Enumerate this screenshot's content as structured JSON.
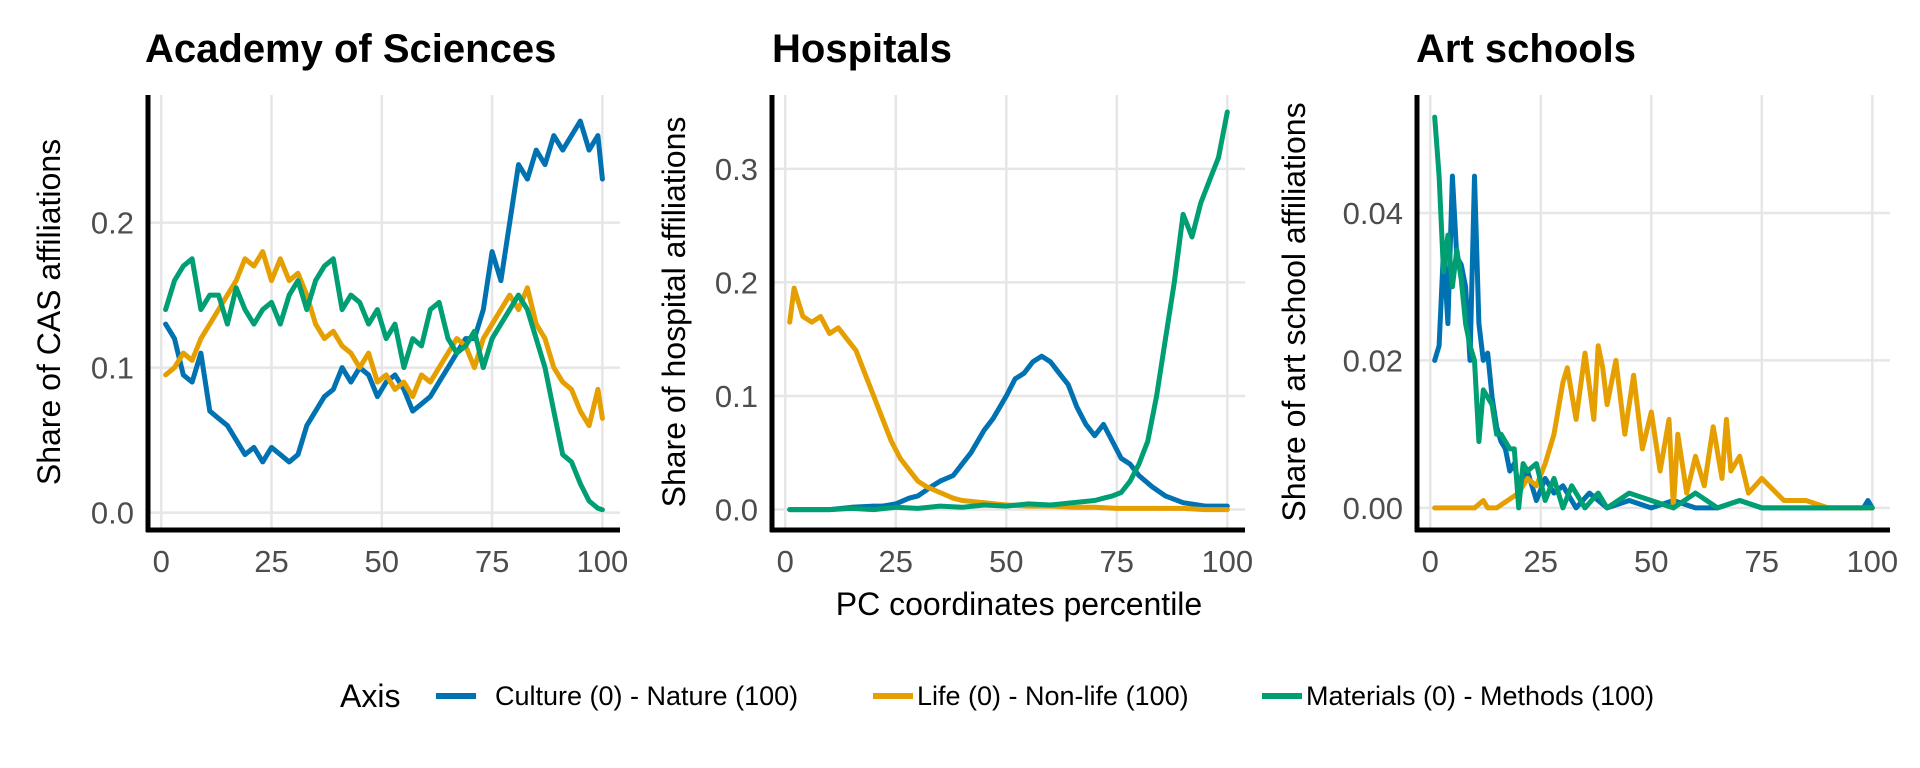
{
  "legend": {
    "title": "Axis",
    "items": [
      {
        "label": "Culture (0) - Nature (100)",
        "color": "#0072B2"
      },
      {
        "label": "Life (0) - Non-life (100)",
        "color": "#E69F00"
      },
      {
        "label": "Materials (0) - Methods (100)",
        "color": "#009E73"
      }
    ]
  },
  "shared_xlabel": "PC coordinates percentile",
  "chart_data": [
    {
      "type": "line",
      "title": "Academy of Sciences",
      "xlabel": "",
      "ylabel": "Share of CAS affiliations",
      "xlim": [
        -3,
        104
      ],
      "ylim": [
        -0.012,
        0.288
      ],
      "x_ticks": [
        0,
        25,
        50,
        75,
        100
      ],
      "x_tick_labels": [
        "0",
        "25",
        "50",
        "75",
        "100"
      ],
      "y_ticks": [
        0.0,
        0.1,
        0.2
      ],
      "y_tick_labels": [
        "0.0",
        "0.1",
        "0.2"
      ],
      "grid": true,
      "series": [
        {
          "name": "Culture (0) - Nature (100)",
          "color": "#0072B2",
          "x": [
            1,
            3,
            5,
            7,
            9,
            11,
            13,
            15,
            17,
            19,
            21,
            23,
            25,
            27,
            29,
            31,
            33,
            35,
            37,
            39,
            41,
            43,
            45,
            47,
            49,
            51,
            53,
            55,
            57,
            59,
            61,
            63,
            65,
            67,
            69,
            71,
            73,
            75,
            77,
            79,
            81,
            83,
            85,
            87,
            89,
            91,
            93,
            95,
            97,
            99,
            100
          ],
          "y": [
            0.13,
            0.12,
            0.095,
            0.09,
            0.11,
            0.07,
            0.065,
            0.06,
            0.05,
            0.04,
            0.045,
            0.035,
            0.045,
            0.04,
            0.035,
            0.04,
            0.06,
            0.07,
            0.08,
            0.085,
            0.1,
            0.09,
            0.1,
            0.095,
            0.08,
            0.09,
            0.095,
            0.085,
            0.07,
            0.075,
            0.08,
            0.09,
            0.1,
            0.11,
            0.12,
            0.12,
            0.14,
            0.18,
            0.16,
            0.2,
            0.24,
            0.23,
            0.25,
            0.24,
            0.26,
            0.25,
            0.26,
            0.27,
            0.25,
            0.26,
            0.23
          ]
        },
        {
          "name": "Life (0) - Non-life (100)",
          "color": "#E69F00",
          "x": [
            1,
            3,
            5,
            7,
            9,
            11,
            13,
            15,
            17,
            19,
            21,
            23,
            25,
            27,
            29,
            31,
            33,
            35,
            37,
            39,
            41,
            43,
            45,
            47,
            49,
            51,
            53,
            55,
            57,
            59,
            61,
            63,
            65,
            67,
            69,
            71,
            73,
            75,
            77,
            79,
            81,
            83,
            85,
            87,
            89,
            91,
            93,
            95,
            97,
            99,
            100
          ],
          "y": [
            0.095,
            0.1,
            0.11,
            0.105,
            0.12,
            0.13,
            0.14,
            0.15,
            0.16,
            0.175,
            0.17,
            0.18,
            0.16,
            0.175,
            0.16,
            0.165,
            0.15,
            0.13,
            0.12,
            0.125,
            0.115,
            0.11,
            0.1,
            0.11,
            0.09,
            0.095,
            0.085,
            0.09,
            0.08,
            0.095,
            0.09,
            0.1,
            0.11,
            0.12,
            0.115,
            0.1,
            0.12,
            0.13,
            0.14,
            0.15,
            0.14,
            0.155,
            0.13,
            0.12,
            0.1,
            0.09,
            0.085,
            0.07,
            0.06,
            0.085,
            0.065
          ]
        },
        {
          "name": "Materials (0) - Methods (100)",
          "color": "#009E73",
          "x": [
            1,
            3,
            5,
            7,
            9,
            11,
            13,
            15,
            17,
            19,
            21,
            23,
            25,
            27,
            29,
            31,
            33,
            35,
            37,
            39,
            41,
            43,
            45,
            47,
            49,
            51,
            53,
            55,
            57,
            59,
            61,
            63,
            65,
            67,
            69,
            71,
            73,
            75,
            77,
            79,
            81,
            83,
            85,
            87,
            89,
            91,
            93,
            95,
            97,
            99,
            100
          ],
          "y": [
            0.14,
            0.16,
            0.17,
            0.175,
            0.14,
            0.15,
            0.15,
            0.13,
            0.155,
            0.14,
            0.13,
            0.14,
            0.145,
            0.13,
            0.15,
            0.16,
            0.14,
            0.16,
            0.17,
            0.175,
            0.14,
            0.15,
            0.145,
            0.13,
            0.14,
            0.12,
            0.13,
            0.1,
            0.12,
            0.115,
            0.14,
            0.145,
            0.12,
            0.11,
            0.115,
            0.125,
            0.1,
            0.12,
            0.13,
            0.14,
            0.15,
            0.14,
            0.12,
            0.1,
            0.07,
            0.04,
            0.035,
            0.02,
            0.008,
            0.003,
            0.002
          ]
        }
      ]
    },
    {
      "type": "line",
      "title": "Hospitals",
      "xlabel": "PC coordinates percentile",
      "ylabel": "Share of hospital affiliations",
      "xlim": [
        -3,
        104
      ],
      "ylim": [
        -0.018,
        0.365
      ],
      "x_ticks": [
        0,
        25,
        50,
        75,
        100
      ],
      "x_tick_labels": [
        "0",
        "25",
        "50",
        "75",
        "100"
      ],
      "y_ticks": [
        0.0,
        0.1,
        0.2,
        0.3
      ],
      "y_tick_labels": [
        "0.0",
        "0.1",
        "0.2",
        "0.3"
      ],
      "grid": true,
      "series": [
        {
          "name": "Culture (0) - Nature (100)",
          "color": "#0072B2",
          "x": [
            1,
            5,
            10,
            15,
            20,
            22,
            25,
            28,
            30,
            33,
            35,
            38,
            40,
            42,
            45,
            47,
            50,
            52,
            54,
            56,
            58,
            60,
            62,
            64,
            66,
            68,
            70,
            72,
            74,
            76,
            78,
            80,
            83,
            86,
            90,
            95,
            100
          ],
          "y": [
            0.0,
            0.0,
            0.0,
            0.002,
            0.003,
            0.003,
            0.005,
            0.01,
            0.012,
            0.02,
            0.025,
            0.03,
            0.04,
            0.05,
            0.07,
            0.08,
            0.1,
            0.115,
            0.12,
            0.13,
            0.135,
            0.13,
            0.12,
            0.11,
            0.09,
            0.075,
            0.065,
            0.075,
            0.06,
            0.045,
            0.04,
            0.03,
            0.02,
            0.012,
            0.006,
            0.003,
            0.003
          ]
        },
        {
          "name": "Life (0) - Non-life (100)",
          "color": "#E69F00",
          "x": [
            1,
            2,
            4,
            6,
            8,
            10,
            12,
            14,
            16,
            18,
            20,
            22,
            24,
            26,
            28,
            30,
            32,
            35,
            38,
            40,
            45,
            50,
            55,
            60,
            65,
            70,
            75,
            80,
            85,
            90,
            95,
            100
          ],
          "y": [
            0.165,
            0.195,
            0.17,
            0.165,
            0.17,
            0.155,
            0.16,
            0.15,
            0.14,
            0.12,
            0.1,
            0.08,
            0.06,
            0.045,
            0.035,
            0.025,
            0.02,
            0.015,
            0.01,
            0.008,
            0.006,
            0.004,
            0.003,
            0.003,
            0.002,
            0.002,
            0.001,
            0.001,
            0.001,
            0.001,
            0.0,
            0.0
          ]
        },
        {
          "name": "Materials (0) - Methods (100)",
          "color": "#009E73",
          "x": [
            1,
            5,
            10,
            15,
            20,
            25,
            30,
            35,
            40,
            45,
            50,
            55,
            60,
            65,
            70,
            72,
            74,
            76,
            78,
            80,
            82,
            84,
            86,
            88,
            90,
            92,
            94,
            96,
            98,
            100
          ],
          "y": [
            0.0,
            0.0,
            0.0,
            0.001,
            0.0,
            0.002,
            0.001,
            0.003,
            0.002,
            0.004,
            0.003,
            0.005,
            0.004,
            0.006,
            0.008,
            0.01,
            0.012,
            0.015,
            0.025,
            0.04,
            0.06,
            0.1,
            0.15,
            0.2,
            0.26,
            0.24,
            0.27,
            0.29,
            0.31,
            0.35
          ]
        }
      ]
    },
    {
      "type": "line",
      "title": "Art schools",
      "xlabel": "",
      "ylabel": "Share of art school affiliations",
      "xlim": [
        -3,
        104
      ],
      "ylim": [
        -0.003,
        0.056
      ],
      "x_ticks": [
        0,
        25,
        50,
        75,
        100
      ],
      "x_tick_labels": [
        "0",
        "25",
        "50",
        "75",
        "100"
      ],
      "y_ticks": [
        0.0,
        0.02,
        0.04
      ],
      "y_tick_labels": [
        "0.00",
        "0.02",
        "0.04"
      ],
      "grid": true,
      "series": [
        {
          "name": "Culture (0) - Nature (100)",
          "color": "#0072B2",
          "x": [
            1,
            2,
            3,
            4,
            5,
            6,
            7,
            8,
            9,
            10,
            11,
            12,
            13,
            14,
            15,
            16,
            17,
            18,
            19,
            20,
            22,
            24,
            26,
            28,
            30,
            33,
            36,
            40,
            45,
            50,
            55,
            60,
            65,
            70,
            75,
            80,
            85,
            90,
            95,
            98,
            99,
            100
          ],
          "y": [
            0.02,
            0.022,
            0.035,
            0.025,
            0.045,
            0.034,
            0.033,
            0.03,
            0.02,
            0.045,
            0.025,
            0.02,
            0.021,
            0.015,
            0.011,
            0.009,
            0.008,
            0.005,
            0.006,
            0.003,
            0.005,
            0.001,
            0.004,
            0.002,
            0.003,
            0.0,
            0.002,
            0.0,
            0.001,
            0.0,
            0.001,
            0.0,
            0.0,
            0.001,
            0.0,
            0.0,
            0.0,
            0.0,
            0.0,
            0.0,
            0.001,
            0.0
          ]
        },
        {
          "name": "Life (0) - Non-life (100)",
          "color": "#E69F00",
          "x": [
            1,
            5,
            10,
            12,
            13,
            15,
            20,
            22,
            24,
            26,
            28,
            30,
            31,
            33,
            35,
            37,
            38,
            39,
            40,
            42,
            44,
            46,
            48,
            50,
            52,
            54,
            55,
            56,
            58,
            60,
            62,
            64,
            66,
            67,
            68,
            70,
            72,
            75,
            80,
            85,
            90,
            95,
            100
          ],
          "y": [
            0.0,
            0.0,
            0.0,
            0.001,
            0.0,
            0.0,
            0.002,
            0.004,
            0.003,
            0.006,
            0.01,
            0.017,
            0.019,
            0.012,
            0.021,
            0.012,
            0.022,
            0.019,
            0.014,
            0.02,
            0.01,
            0.018,
            0.008,
            0.013,
            0.005,
            0.012,
            0.0,
            0.01,
            0.002,
            0.007,
            0.003,
            0.011,
            0.004,
            0.012,
            0.005,
            0.007,
            0.002,
            0.004,
            0.001,
            0.001,
            0.0,
            0.0,
            0.0
          ]
        },
        {
          "name": "Materials (0) - Methods (100)",
          "color": "#009E73",
          "x": [
            1,
            2,
            3,
            4,
            5,
            6,
            7,
            8,
            9,
            10,
            11,
            12,
            13,
            14,
            15,
            16,
            17,
            18,
            19,
            20,
            21,
            22,
            24,
            26,
            28,
            30,
            32,
            35,
            38,
            40,
            45,
            50,
            55,
            60,
            65,
            70,
            75,
            80,
            85,
            90,
            95,
            100
          ],
          "y": [
            0.053,
            0.045,
            0.032,
            0.037,
            0.03,
            0.035,
            0.031,
            0.025,
            0.022,
            0.02,
            0.009,
            0.016,
            0.015,
            0.014,
            0.01,
            0.01,
            0.009,
            0.008,
            0.008,
            0.0,
            0.006,
            0.005,
            0.006,
            0.001,
            0.004,
            0.0,
            0.003,
            0.0,
            0.002,
            0.0,
            0.002,
            0.001,
            0.0,
            0.002,
            0.0,
            0.001,
            0.0,
            0.0,
            0.0,
            0.0,
            0.0,
            0.0
          ]
        }
      ]
    }
  ]
}
